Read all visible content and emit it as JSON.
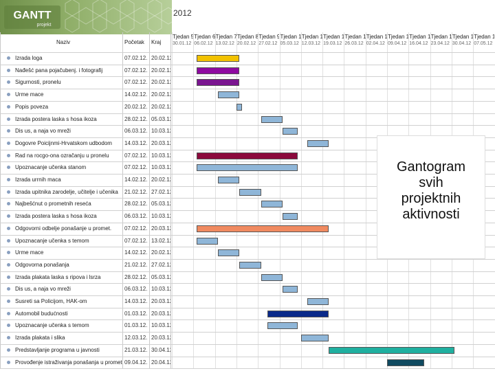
{
  "header": {
    "logo_text": "GANTT",
    "logo_subtext": "projekt",
    "year": "2012"
  },
  "columns": {
    "name": "Naziv",
    "start": "Početak",
    "end": "Kraj"
  },
  "weeks": [
    {
      "label": "Tjedan 5",
      "date": "30.01.12"
    },
    {
      "label": "Tjedan 6",
      "date": "06.02.12"
    },
    {
      "label": "Tjedan 7",
      "date": "13.02.12"
    },
    {
      "label": "Tjedan 8",
      "date": "20.02.12"
    },
    {
      "label": "Tjedan 9",
      "date": "27.02.12"
    },
    {
      "label": "Tjedan 10",
      "date": "05.03.12"
    },
    {
      "label": "Tjedan 11",
      "date": "12.03.12"
    },
    {
      "label": "Tjedan 12",
      "date": "19.03.12"
    },
    {
      "label": "Tjedan 13",
      "date": "26.03.12"
    },
    {
      "label": "Tjedan 14",
      "date": "02.04.12"
    },
    {
      "label": "Tjedan 15",
      "date": "09.04.12"
    },
    {
      "label": "Tjedan 16",
      "date": "16.04.12"
    },
    {
      "label": "Tjedan 17",
      "date": "23.04.12"
    },
    {
      "label": "Tjedan 18",
      "date": "30.04.12"
    },
    {
      "label": "Tjedan 19",
      "date": "07.05.12"
    }
  ],
  "tasks": [
    {
      "name": "Izrada loga",
      "start": "07.02.12.",
      "end": "20.02.12",
      "color": "#f2c200"
    },
    {
      "name": "Nađešć pana pojačubenj. i fotografij",
      "start": "07.02.12.",
      "end": "20.02.12",
      "color": "#8e0aa0"
    },
    {
      "name": "Sigurnosti, pronelu",
      "start": "07.02.12.",
      "end": "20.02.12",
      "color": "#7a1590"
    },
    {
      "name": "Urme mace",
      "start": "14.02.12.",
      "end": "20.02.12",
      "color": "#8fb6d8"
    },
    {
      "name": "Popis poveza",
      "start": "20.02.12.",
      "end": "20.02.12",
      "color": "#8fb6d8"
    },
    {
      "name": "Izrada postera laska s hosa ikoza",
      "start": "28.02.12.",
      "end": "05.03.12",
      "color": "#8fb6d8"
    },
    {
      "name": "Dis us, a naja vo mreži",
      "start": "06.03.12.",
      "end": "10.03.12",
      "color": "#8fb6d8"
    },
    {
      "name": "Dogovre Poicijnmi-Hrvatskom udbodom",
      "start": "14.03.12.",
      "end": "20.03.12",
      "color": "#8fb6d8"
    },
    {
      "name": "Rad na rocgo-ona ozračanju u pronelu",
      "start": "07.02.12.",
      "end": "10.03.12",
      "color": "#8b0a3c"
    },
    {
      "name": "Upoznacanje učenka stanom",
      "start": "07.02.12.",
      "end": "10.03.12",
      "color": "#8fb6d8"
    },
    {
      "name": "Izrada urrnih maca",
      "start": "14.02.12.",
      "end": "20.02.12",
      "color": "#8fb6d8"
    },
    {
      "name": "Izrada upitnika zarodelje, učitelje i učenika",
      "start": "21.02.12.",
      "end": "27.02.12",
      "color": "#8fb6d8"
    },
    {
      "name": "Najbešćnut o prometnih reseća",
      "start": "28.02.12.",
      "end": "05.03.12",
      "color": "#8fb6d8"
    },
    {
      "name": "Izrada postera laska s hosa ikoza",
      "start": "06.03.12.",
      "end": "10.03.12",
      "color": "#8fb6d8"
    },
    {
      "name": "Odgovorni odbelje ponašanje u promet.",
      "start": "07.02.12.",
      "end": "20.03.12",
      "color": "#f08a60"
    },
    {
      "name": "Upoznacanje učenka s temom",
      "start": "07.02.12.",
      "end": "13.02.12",
      "color": "#8fb6d8"
    },
    {
      "name": "Urme mace",
      "start": "14.02.12.",
      "end": "20.02.12",
      "color": "#8fb6d8"
    },
    {
      "name": "Odgovorna ponašanja",
      "start": "21.02.12.",
      "end": "27.02.12",
      "color": "#8fb6d8"
    },
    {
      "name": "Izrada plakata laska s ripova i lsrza",
      "start": "28.02.12.",
      "end": "05.03.12",
      "color": "#8fb6d8"
    },
    {
      "name": "Dis us, a naja vo mreži",
      "start": "06.03.12.",
      "end": "10.03.12",
      "color": "#8fb6d8"
    },
    {
      "name": "Susreti sa Policijom, HAK-om",
      "start": "14.03.12.",
      "end": "20.03.12",
      "color": "#8fb6d8"
    },
    {
      "name": "Automobil budućnosti",
      "start": "01.03.12.",
      "end": "20.03.12",
      "color": "#0a2a8a"
    },
    {
      "name": "Upoznacanje učenka s temom",
      "start": "01.03.12.",
      "end": "10.03.12",
      "color": "#8fb6d8"
    },
    {
      "name": "Izrada plakata i slika",
      "start": "12.03.12.",
      "end": "20.03.12",
      "color": "#8fb6d8"
    },
    {
      "name": "Predstavljanje programa u javnosti",
      "start": "21.03.12.",
      "end": "30.04.12",
      "color": "#20b0a0"
    },
    {
      "name": "Provođenje istraživanja ponašanja u promet",
      "start": "09.04.12.",
      "end": "20.04.12",
      "color": "#104a60"
    }
  ],
  "callout": {
    "lines": [
      "Gantogram",
      "svih",
      "projektnih",
      "aktivnosti"
    ]
  }
}
